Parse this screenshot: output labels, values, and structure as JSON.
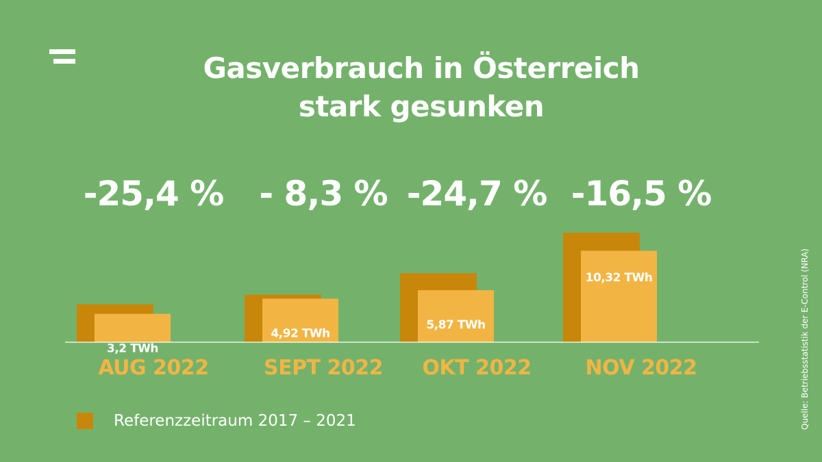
{
  "logo": {
    "icon": "logo-mark-icon"
  },
  "title": {
    "line1": "Gasverbrauch in Österreich",
    "line2": "stark gesunken"
  },
  "colors": {
    "background": "#74b26c",
    "reference": "#c8870a",
    "current": "#f2b544",
    "text": "#ffffff"
  },
  "legend": {
    "label": "Referenzzeitraum 2017 – 2021"
  },
  "source": "Quelle: Betriebsstatistik der E-Control (NRA)",
  "chart_data": {
    "type": "bar",
    "title": "Gasverbrauch in Österreich stark gesunken",
    "categories": [
      "AUG 2022",
      "SEPT 2022",
      "OKT 2022",
      "NOV 2022"
    ],
    "unit": "TWh",
    "series": [
      {
        "name": "Referenzzeitraum 2017 – 2021",
        "values": [
          4.29,
          5.37,
          7.79,
          12.36
        ]
      },
      {
        "values": [
          3.2,
          4.92,
          5.87,
          10.32
        ],
        "labels": [
          "3,2 TWh",
          "4,92 TWh",
          "5,87 TWh",
          "10,32 TWh"
        ]
      }
    ],
    "change_labels": [
      "-25,4 %",
      "- 8,3 %",
      "-24,7 %",
      "-16,5 %"
    ],
    "ylim": [
      0,
      12.36
    ],
    "grid": false,
    "legend": "bottom-left"
  }
}
